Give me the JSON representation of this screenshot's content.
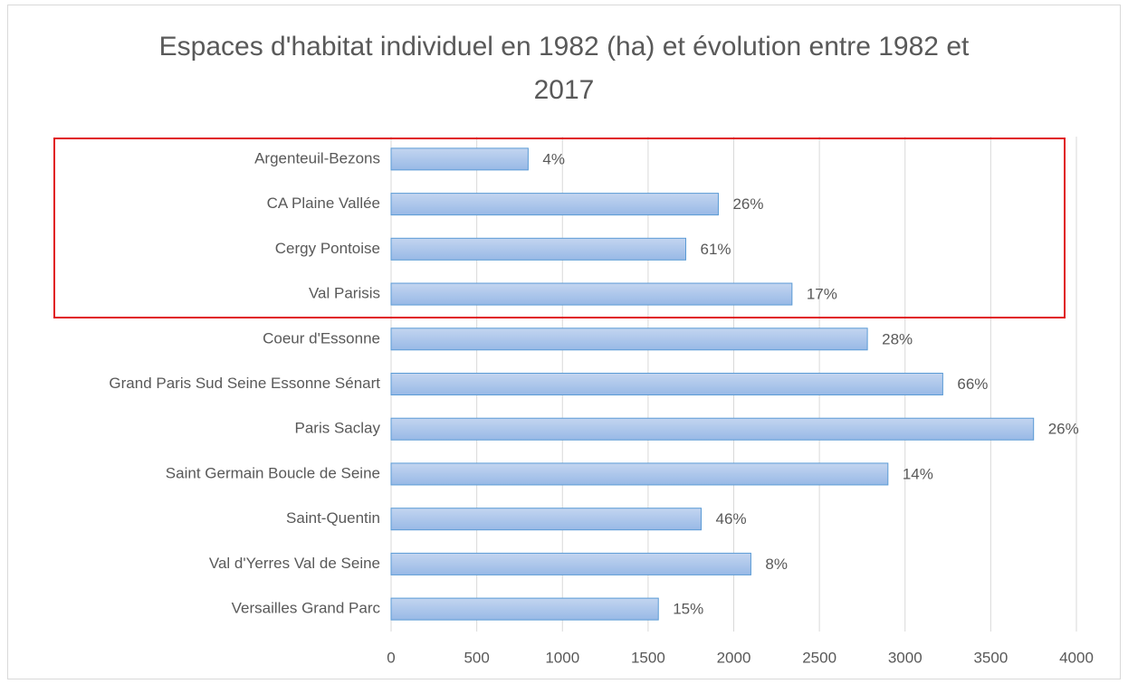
{
  "chart_data": {
    "type": "bar",
    "orientation": "horizontal",
    "title": "Espaces d'habitat individuel en 1982 (ha) et évolution entre 1982 et 2017",
    "categories": [
      "Argenteuil-Bezons",
      "CA Plaine Vallée",
      "Cergy Pontoise",
      "Val Parisis",
      "Coeur d'Essonne",
      "Grand Paris Sud Seine Essonne Sénart",
      "Paris Saclay",
      "Saint Germain Boucle de Seine",
      "Saint-Quentin",
      "Val d'Yerres Val de Seine",
      "Versailles Grand Parc"
    ],
    "values": [
      800,
      1910,
      1720,
      2340,
      2780,
      3220,
      3750,
      2900,
      1810,
      2100,
      1560
    ],
    "data_labels": [
      "4%",
      "26%",
      "61%",
      "17%",
      "28%",
      "66%",
      "26%",
      "14%",
      "46%",
      "8%",
      "15%"
    ],
    "color": "#a9c4ea",
    "xlim": [
      0,
      4000
    ],
    "xticks": [
      0,
      500,
      1000,
      1500,
      2000,
      2500,
      3000,
      3500,
      4000
    ],
    "grid": true
  }
}
